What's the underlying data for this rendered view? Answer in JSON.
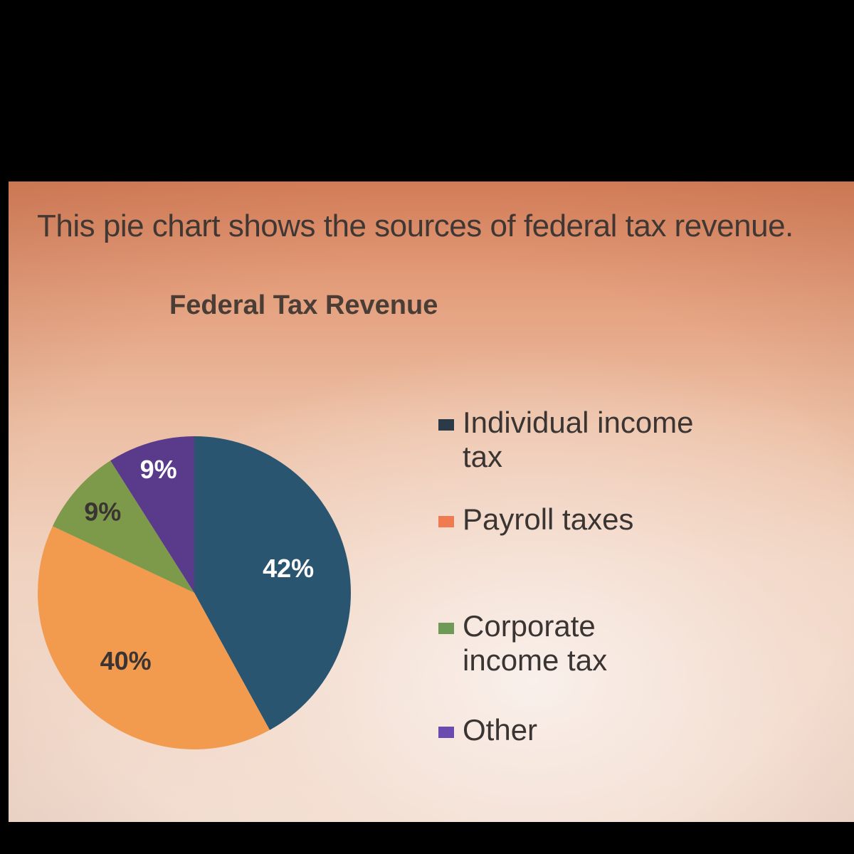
{
  "prompt_text": "This pie chart shows the sources of federal tax revenue.",
  "chart_data": {
    "type": "pie",
    "title": "Federal Tax Revenue",
    "legend_position": "right",
    "slices": [
      {
        "name": "Individual income tax",
        "value": 42,
        "label": "42%",
        "color": "#2a5570",
        "label_color": "#ffffff"
      },
      {
        "name": "Payroll taxes",
        "value": 40,
        "label": "40%",
        "color": "#f29a4e",
        "label_color": "#3a3432"
      },
      {
        "name": "Corporate income tax",
        "value": 9,
        "label": "9%",
        "color": "#7d9a4a",
        "label_color": "#3a3432"
      },
      {
        "name": "Other",
        "value": 9,
        "label": "9%",
        "color": "#5a3a8a",
        "label_color": "#ffffff"
      }
    ],
    "legend": [
      {
        "name": "Individual income tax",
        "label": "Individual income tax",
        "color": "#2a3a48"
      },
      {
        "name": "Payroll taxes",
        "label": "Payroll taxes",
        "color": "#f07b50"
      },
      {
        "name": "Corporate income tax",
        "label": "Corporate income tax",
        "color": "#6f9a55"
      },
      {
        "name": "Other",
        "label": "Other",
        "color": "#6a4bb0"
      }
    ]
  }
}
